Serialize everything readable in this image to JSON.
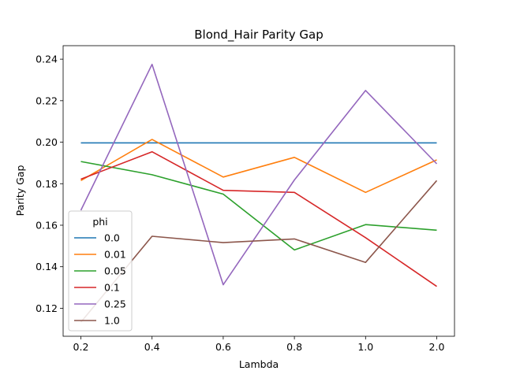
{
  "chart_data": {
    "type": "line",
    "title": "Blond_Hair Parity Gap",
    "xlabel": "Lambda",
    "ylabel": "Parity Gap",
    "categories": [
      "0.2",
      "0.4",
      "0.6",
      "0.8",
      "1.0",
      "2.0"
    ],
    "yticks": [
      "0.12",
      "0.14",
      "0.16",
      "0.18",
      "0.20",
      "0.22",
      "0.24"
    ],
    "ylim": [
      0.1065,
      0.2465
    ],
    "legend": {
      "title": "phi",
      "placement": "lower-left"
    },
    "grid": false,
    "series": [
      {
        "name": "0.0",
        "color": "#1f77b4",
        "values": [
          0.1997,
          0.1997,
          0.1997,
          0.1997,
          0.1997,
          0.1997
        ]
      },
      {
        "name": "0.01",
        "color": "#ff7f0e",
        "values": [
          0.1815,
          0.2013,
          0.1832,
          0.1927,
          0.1758,
          0.1915
        ]
      },
      {
        "name": "0.05",
        "color": "#2ca02c",
        "values": [
          0.1907,
          0.1843,
          0.175,
          0.1481,
          0.1603,
          0.1576
        ]
      },
      {
        "name": "0.1",
        "color": "#d62728",
        "values": [
          0.1822,
          0.1954,
          0.1768,
          0.1758,
          0.154,
          0.1305
        ]
      },
      {
        "name": "0.25",
        "color": "#9467bd",
        "values": [
          0.1672,
          0.2375,
          0.1313,
          0.1818,
          0.2249,
          0.1896
        ]
      },
      {
        "name": "1.0",
        "color": "#8c564b",
        "values": [
          0.1133,
          0.1547,
          0.1516,
          0.1534,
          0.1421,
          0.1815
        ]
      }
    ]
  }
}
